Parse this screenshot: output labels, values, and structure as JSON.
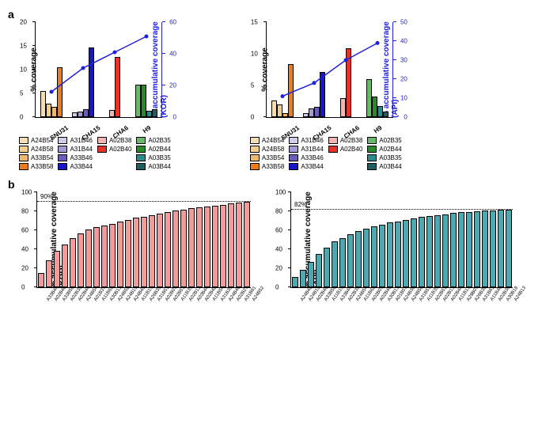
{
  "panels": {
    "a_left": {
      "ylabel": "% coverage",
      "y2label": "% accumulative coverage (KOR)",
      "y2label_short": "% accumulative coverage\n(KOR)",
      "ymax": 20,
      "ytick_step": 5,
      "y2max": 60,
      "y2tick_step": 20,
      "groups": [
        "SNU31",
        "CHA15",
        "CHA6",
        "H9"
      ],
      "group_bars": [
        [
          {
            "v": 5.5,
            "c": "#f3deb3"
          },
          {
            "v": 2.8,
            "c": "#f2ce8a"
          },
          {
            "v": 2.2,
            "c": "#eeb96d"
          },
          {
            "v": 10.5,
            "c": "#ec7c1e"
          }
        ],
        [
          {
            "v": 1.0,
            "c": "#d3cce9"
          },
          {
            "v": 1.2,
            "c": "#a59bd4"
          },
          {
            "v": 1.7,
            "c": "#6a5fb8"
          },
          {
            "v": 14.7,
            "c": "#1717c9"
          }
        ],
        [
          {
            "v": 1.5,
            "c": "#f4b4b2"
          },
          {
            "v": 12.6,
            "c": "#e7322c"
          }
        ],
        [
          {
            "v": 6.8,
            "c": "#6ab96a"
          },
          {
            "v": 6.8,
            "c": "#2a8a2a"
          },
          {
            "v": 1.4,
            "c": "#2b8a8a"
          },
          {
            "v": 1.6,
            "c": "#1e5e5e"
          }
        ]
      ],
      "line": [
        16,
        31,
        41,
        51
      ]
    },
    "a_right": {
      "ylabel": "% coverage",
      "y2label": "% accumulative coverage (API)",
      "ymax": 15,
      "ytick_step": 5,
      "y2max": 50,
      "y2tick_step": 10,
      "groups": [
        "SNU31",
        "CHA15",
        "CHA6",
        "H9"
      ],
      "group_bars": [
        [
          {
            "v": 2.6,
            "c": "#f3deb3"
          },
          {
            "v": 2.0,
            "c": "#f2ce8a"
          },
          {
            "v": 0.6,
            "c": "#eeb96d"
          },
          {
            "v": 8.4,
            "c": "#ec7c1e"
          }
        ],
        [
          {
            "v": 0.6,
            "c": "#d3cce9"
          },
          {
            "v": 1.4,
            "c": "#a59bd4"
          },
          {
            "v": 1.6,
            "c": "#6a5fb8"
          },
          {
            "v": 7.1,
            "c": "#1717c9"
          }
        ],
        [
          {
            "v": 3.0,
            "c": "#f4b4b2"
          },
          {
            "v": 10.9,
            "c": "#e7322c"
          }
        ],
        [
          {
            "v": 6.0,
            "c": "#6ab96a"
          },
          {
            "v": 3.2,
            "c": "#2a8a2a"
          },
          {
            "v": 1.8,
            "c": "#2b8a8a"
          },
          {
            "v": 0.9,
            "c": "#1e5e5e"
          }
        ]
      ],
      "line": [
        11,
        18,
        30,
        39
      ]
    },
    "legend": [
      {
        "l": "A24B54",
        "c": "#f3deb3"
      },
      {
        "l": "A31B46",
        "c": "#d3cce9"
      },
      {
        "l": "A02B38",
        "c": "#f4b4b2"
      },
      {
        "l": "A02B35",
        "c": "#6ab96a"
      },
      {
        "l": "A24B58",
        "c": "#f2ce8a"
      },
      {
        "l": "A31B44",
        "c": "#a59bd4"
      },
      {
        "l": "A02B40",
        "c": "#e7322c"
      },
      {
        "l": "A02B44",
        "c": "#2a8a2a"
      },
      {
        "l": "A33B54",
        "c": "#eeb96d"
      },
      {
        "l": "A33B46",
        "c": "#6a5fb8"
      },
      {
        "l": "",
        "c": ""
      },
      {
        "l": "A03B35",
        "c": "#2b8a8a"
      },
      {
        "l": "A33B58",
        "c": "#ec7c1e"
      },
      {
        "l": "A33B44",
        "c": "#1717c9"
      },
      {
        "l": "",
        "c": ""
      },
      {
        "l": "A03B44",
        "c": "#1e5e5e"
      }
    ],
    "b_left": {
      "ylabel": "% accumulative coverage (KOR)",
      "ymax": 100,
      "ytick_step": 20,
      "dotted_at": 90,
      "dotted_label": "90%",
      "bar_color": "#f19b9b",
      "labels": [
        "A33B44",
        "A02B40",
        "A33B58",
        "A02B35",
        "A02B44",
        "A24B54",
        "A01B37",
        "A11B62",
        "A30B13",
        "A24B58",
        "A24B15",
        "A24B48",
        "A11B15",
        "A26B35",
        "A31B51",
        "A02B07",
        "A02B51",
        "A11B35",
        "A02B13",
        "A03B44",
        "A02B48",
        "A11B54",
        "A31B35",
        "A24B40",
        "A02B27",
        "A31B61",
        "A24B52"
      ],
      "values": [
        15,
        28,
        38,
        45,
        52,
        57,
        61,
        63,
        65,
        67,
        69,
        71,
        73,
        74.5,
        76,
        77.5,
        79,
        80.5,
        82,
        83,
        84,
        85,
        86,
        87,
        88,
        89,
        90
      ]
    },
    "b_right": {
      "ylabel": "% accumulative coverage (API)",
      "ymax": 100,
      "ytick_step": 20,
      "dotted_at": 82,
      "dotted_label": "82%",
      "bar_color": "#4da8b0",
      "labels": [
        "A24B48",
        "A24B15",
        "A02B40",
        "A33B58",
        "A11B15",
        "A33B44",
        "A02B35",
        "A24B54",
        "A11B62",
        "A02B07",
        "A02B46",
        "A30B13",
        "A01B57",
        "A24B38",
        "A24B58",
        "A31B51",
        "A11B35",
        "A02B51",
        "A02B13",
        "A02B44",
        "A11B13",
        "A29B07",
        "A26B38",
        "A31B61",
        "A11B46",
        "A02B38",
        "A30B18",
        "A24B13"
      ],
      "values": [
        11,
        18,
        27,
        35,
        42,
        48,
        52,
        56,
        59,
        62,
        64,
        66,
        68,
        69.5,
        71,
        72.5,
        74,
        75,
        76,
        77,
        78,
        78.8,
        79.5,
        80,
        80.5,
        81,
        81.5,
        82
      ]
    }
  },
  "colors": {
    "line": "#2020dd"
  }
}
